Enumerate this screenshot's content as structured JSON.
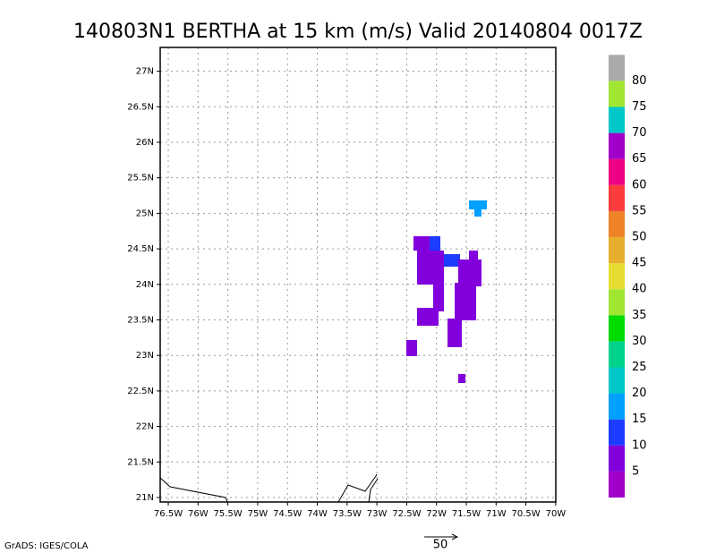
{
  "title": "140803N1 BERTHA at 15 km (m/s) Valid 20140804 0017Z",
  "x_axis_labels": [
    "76.5W",
    "76W",
    "75.5W",
    "75W",
    "74.5W",
    "74W",
    "73.5W",
    "73W",
    "72.5W",
    "72W",
    "71.5W",
    "71W",
    "70.5W",
    "70W"
  ],
  "y_axis_labels": [
    "21N",
    "21.5N",
    "22N",
    "22.5N",
    "23N",
    "23.5N",
    "24N",
    "24.5N",
    "25N",
    "25.5N",
    "26N",
    "26.5N",
    "27N"
  ],
  "colorbar_labels": [
    "5",
    "10",
    "15",
    "20",
    "25",
    "30",
    "35",
    "40",
    "45",
    "50",
    "55",
    "60",
    "65",
    "70",
    "75",
    "80"
  ],
  "credit": "GrADS: IGES/COLA",
  "vector_scale_label": "50"
}
